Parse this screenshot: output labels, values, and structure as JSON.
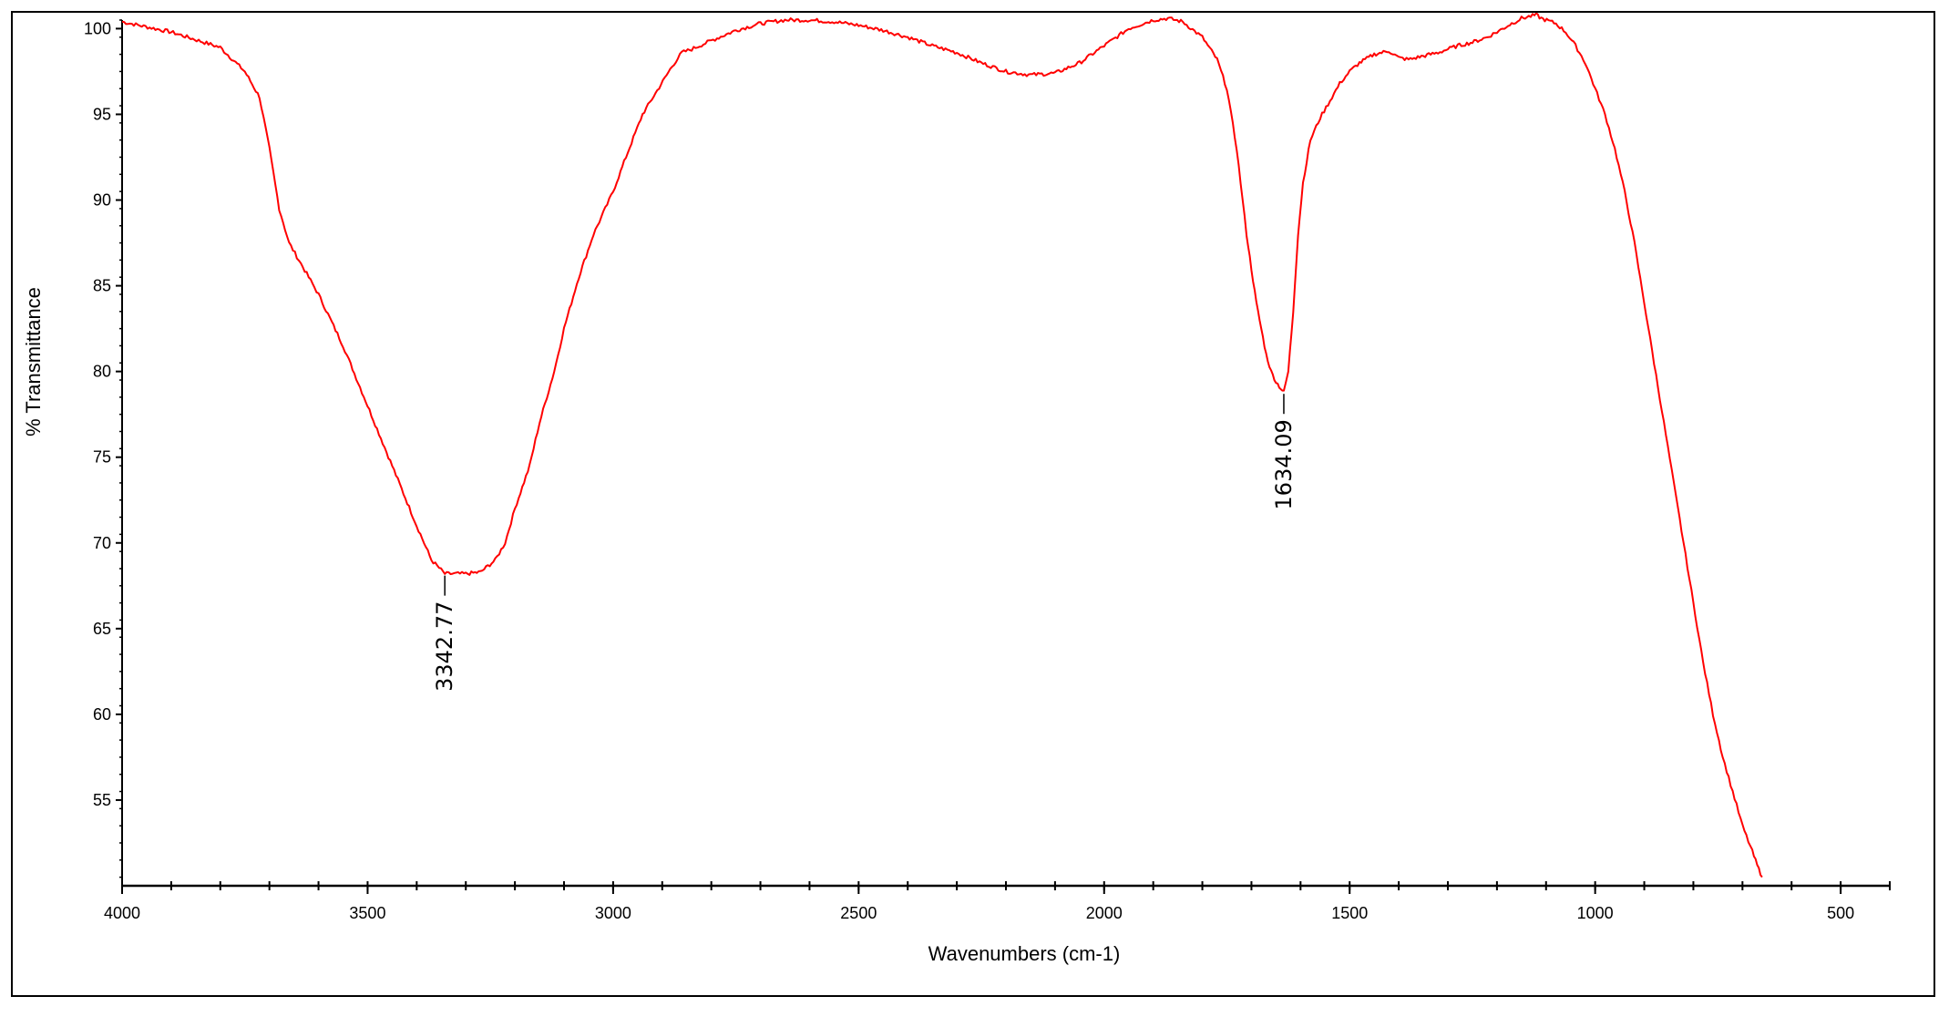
{
  "chart_data": {
    "type": "line",
    "title": "",
    "xlabel": "Wavenumbers (cm-1)",
    "ylabel": "% Transmittance",
    "xlim": [
      4000,
      400
    ],
    "ylim": [
      50,
      100.5
    ],
    "x_ticks": [
      4000,
      3500,
      3000,
      2500,
      2000,
      1500,
      1000,
      500
    ],
    "y_ticks": [
      55,
      60,
      65,
      70,
      75,
      80,
      85,
      90,
      95,
      100
    ],
    "grid": false,
    "legend": "none",
    "line_color": "#ff0000",
    "series": [
      {
        "x": [
          4000,
          3900,
          3800,
          3750,
          3720,
          3700,
          3680,
          3660,
          3640,
          3600,
          3550,
          3500,
          3450,
          3400,
          3370,
          3342.77,
          3300,
          3270,
          3240,
          3220,
          3200,
          3170,
          3150,
          3120,
          3100,
          3070,
          3040,
          3000,
          2970,
          2940,
          2910,
          2880,
          2860,
          2840,
          2800,
          2750,
          2700,
          2650,
          2600,
          2550,
          2500,
          2450,
          2400,
          2350,
          2300,
          2250,
          2200,
          2150,
          2100,
          2050,
          2000,
          1950,
          1900,
          1870,
          1840,
          1800,
          1770,
          1750,
          1730,
          1710,
          1700,
          1690,
          1680,
          1670,
          1660,
          1650,
          1640,
          1634.09,
          1625,
          1615,
          1605,
          1595,
          1580,
          1560,
          1540,
          1520,
          1500,
          1480,
          1450,
          1420,
          1400,
          1380,
          1350,
          1320,
          1300,
          1280,
          1250,
          1220,
          1200,
          1170,
          1150,
          1120,
          1110,
          1080,
          1060,
          1040,
          1020,
          1000,
          980,
          960,
          940,
          920,
          900,
          880,
          860,
          840,
          820,
          800,
          780,
          760,
          740,
          720,
          700,
          680,
          670,
          660
        ],
        "y": [
          100.4,
          99.8,
          98.9,
          97.5,
          96.0,
          93.0,
          89.5,
          87.5,
          86.5,
          84.5,
          81.5,
          78.0,
          74.5,
          71.0,
          69.0,
          68.2,
          68.2,
          68.3,
          69.0,
          70.0,
          72.0,
          74.5,
          77.0,
          80.0,
          82.5,
          85.5,
          88.0,
          90.5,
          92.8,
          95.0,
          96.4,
          97.8,
          98.6,
          98.8,
          99.3,
          99.9,
          100.3,
          100.5,
          100.5,
          100.4,
          100.2,
          99.9,
          99.5,
          99.0,
          98.6,
          98.0,
          97.5,
          97.3,
          97.4,
          98.0,
          99.0,
          100.0,
          100.5,
          100.6,
          100.4,
          99.5,
          98.2,
          96.5,
          93.0,
          88.0,
          86.0,
          84.0,
          82.5,
          81.0,
          80.0,
          79.4,
          79.0,
          78.8,
          80.0,
          83.5,
          88.0,
          91.0,
          93.5,
          94.8,
          95.8,
          96.8,
          97.5,
          98.0,
          98.5,
          98.7,
          98.3,
          98.2,
          98.4,
          98.6,
          98.8,
          99.0,
          99.2,
          99.5,
          99.8,
          100.3,
          100.6,
          100.8,
          100.6,
          100.3,
          99.8,
          99.0,
          98.0,
          96.5,
          95.0,
          93.0,
          90.5,
          87.5,
          84.0,
          80.5,
          77.0,
          73.5,
          70.0,
          66.5,
          63.0,
          60.0,
          57.5,
          55.5,
          53.5,
          52.0,
          51.2,
          50.5
        ]
      }
    ],
    "annotations": [
      {
        "x": 3342.77,
        "y": 68.2,
        "label": "3342.77"
      },
      {
        "x": 1634.09,
        "y": 78.8,
        "label": "1634.09"
      }
    ]
  }
}
